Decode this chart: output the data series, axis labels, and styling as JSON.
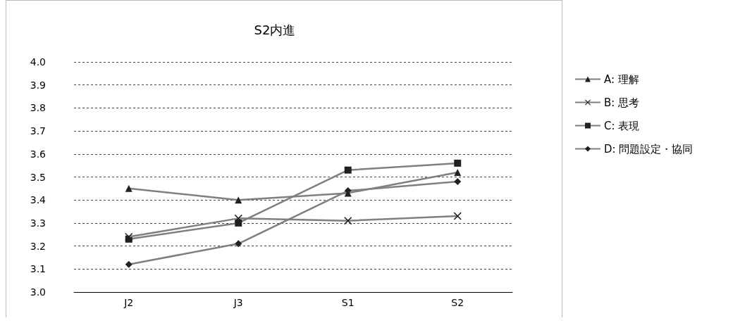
{
  "chart_data": {
    "type": "line",
    "title": "S2内進",
    "categories": [
      "J2",
      "J3",
      "S1",
      "S2"
    ],
    "ylim": [
      3.0,
      4.0
    ],
    "yticks": [
      {
        "value": 3,
        "label": "3.0"
      },
      3.1,
      3.2,
      3.3,
      3.4,
      3.5,
      3.6,
      3.7,
      3.8,
      3.9,
      {
        "value": 4,
        "label": "4.0"
      }
    ],
    "grid": "y",
    "legend": "right",
    "series": [
      {
        "name": "A: 理解",
        "color": "#7f7f7f",
        "marker": "triangle",
        "values": [
          3.45,
          3.4,
          3.43,
          3.52
        ]
      },
      {
        "name": "B: 思考",
        "color": "#7f7f7f",
        "marker": "cross",
        "values": [
          3.24,
          3.32,
          3.31,
          3.33
        ]
      },
      {
        "name": "C: 表現",
        "color": "#7f7f7f",
        "marker": "square",
        "values": [
          3.23,
          3.3,
          3.53,
          3.56
        ]
      },
      {
        "name": "D: 問題設定・協同",
        "color": "#7f7f7f",
        "marker": "diamond",
        "values": [
          3.12,
          3.21,
          3.44,
          3.48
        ]
      }
    ]
  }
}
